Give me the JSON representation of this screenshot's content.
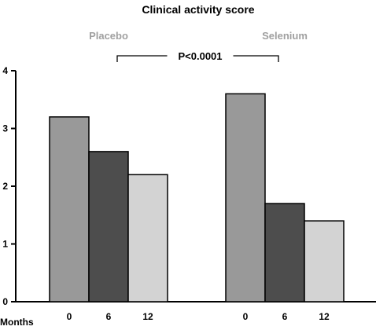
{
  "chart_data": {
    "type": "bar",
    "title": "Clinical activity score",
    "xlabel": "Months",
    "ylabel": "",
    "ylim": [
      0,
      4
    ],
    "yticks": [
      0,
      1,
      2,
      3,
      4
    ],
    "groups": [
      {
        "label": "Placebo",
        "categories": [
          "0",
          "6",
          "12"
        ],
        "values": [
          3.2,
          2.6,
          2.2
        ]
      },
      {
        "label": "Selenium",
        "categories": [
          "0",
          "6",
          "12"
        ],
        "values": [
          3.6,
          1.7,
          1.4
        ]
      }
    ],
    "annotations": [
      {
        "text": "P<0.0001",
        "type": "bracket",
        "between": [
          "Placebo",
          "Selenium"
        ]
      }
    ],
    "grid": false,
    "legend": "none"
  },
  "colors": {
    "months_0": "#999999",
    "months_6": "#4d4d4d",
    "months_12": "#d3d3d3",
    "group_label": "#a0a0a0",
    "text": "#000000"
  }
}
